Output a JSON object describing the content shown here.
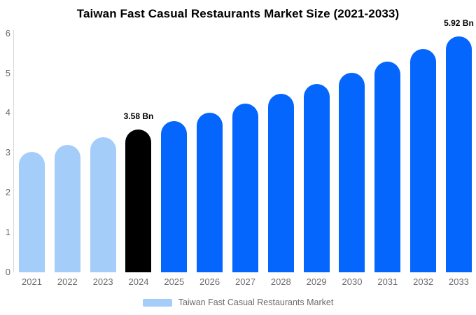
{
  "chart_data": {
    "type": "bar",
    "title": "Taiwan Fast Casual Restaurants Market Size (2021-2033)",
    "categories": [
      "2021",
      "2022",
      "2023",
      "2024",
      "2025",
      "2026",
      "2027",
      "2028",
      "2029",
      "2030",
      "2031",
      "2032",
      "2033"
    ],
    "values": [
      3.03,
      3.2,
      3.39,
      3.58,
      3.79,
      4.0,
      4.23,
      4.48,
      4.73,
      5.01,
      5.29,
      5.6,
      5.92
    ],
    "bar_colors": [
      "#A4CDFA",
      "#A4CDFA",
      "#A4CDFA",
      "#000000",
      "#0566FE",
      "#0566FE",
      "#0566FE",
      "#0566FE",
      "#0566FE",
      "#0566FE",
      "#0566FE",
      "#0566FE",
      "#0566FE"
    ],
    "xlabel": "",
    "ylabel": "",
    "ylim": [
      0,
      6
    ],
    "yticks": [
      "0",
      "1",
      "2",
      "3",
      "4",
      "5",
      "6"
    ],
    "grid": false,
    "legend_position": "bottom",
    "annotations": [
      {
        "category": "2024",
        "text": "3.58 Bn"
      },
      {
        "category": "2033",
        "text": "5.92 Bn"
      }
    ],
    "legend": [
      {
        "label": "Taiwan Fast Casual Restaurants Market",
        "color": "#A4CDFA"
      }
    ],
    "colors": {
      "historical_bar": "#A4CDFA",
      "base_year_bar": "#000000",
      "forecast_bar": "#0566FE",
      "axis_line": "#D8D8D8",
      "tick_label": "#6B6B6B",
      "title_text": "#000000",
      "annotation_text": "#000000"
    }
  }
}
